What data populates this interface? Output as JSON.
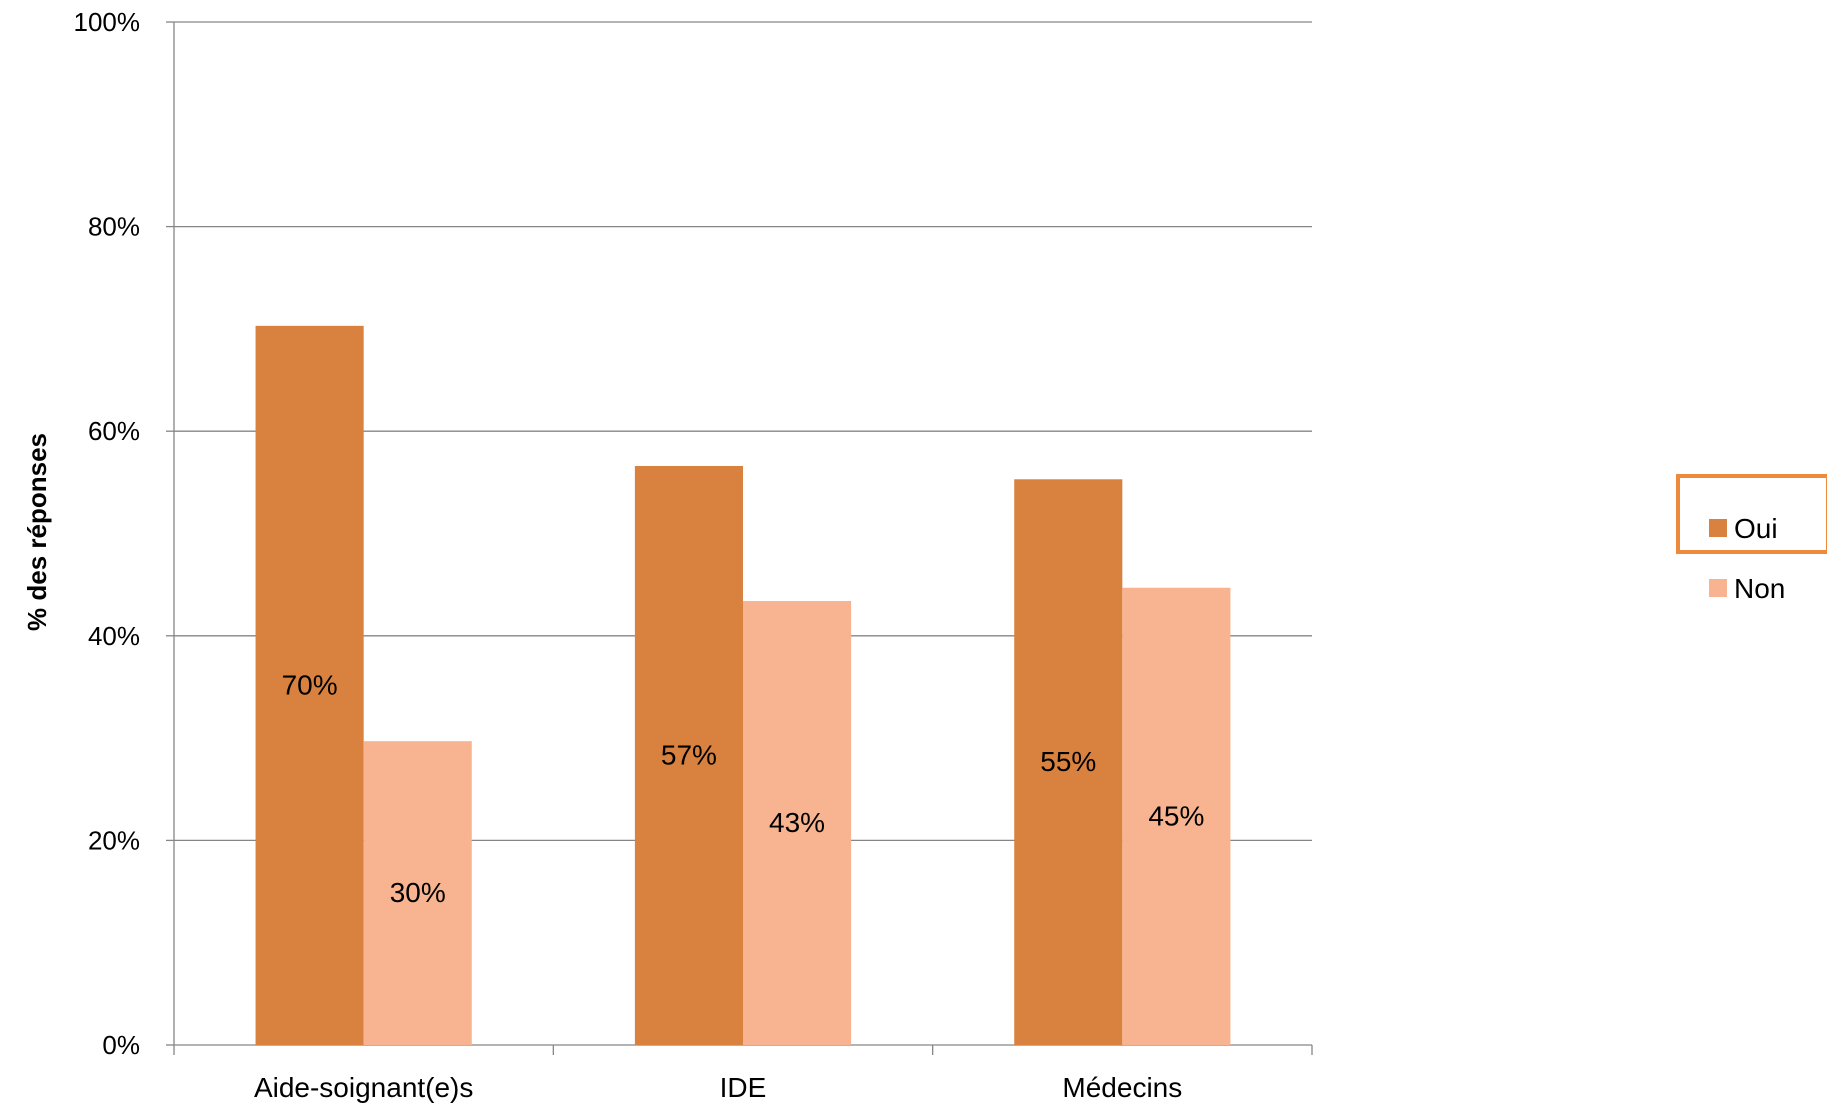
{
  "chart_data": {
    "type": "bar",
    "title": "",
    "xlabel": "",
    "ylabel": "% des réponses",
    "ylim": [
      0,
      100
    ],
    "yticks": [
      "0%",
      "20%",
      "40%",
      "60%",
      "80%",
      "100%"
    ],
    "ytick_values": [
      0,
      20,
      40,
      60,
      80,
      100
    ],
    "grid": true,
    "legend_position": "right",
    "categories": [
      "Aide-soignant(e)s",
      "IDE",
      "Médecins"
    ],
    "series": [
      {
        "name": "Oui",
        "color": "#d9823f",
        "values": [
          70.3,
          56.6,
          55.3
        ],
        "labels": [
          "70%",
          "57%",
          "55%"
        ]
      },
      {
        "name": "Non",
        "color": "#f8b490",
        "values": [
          29.7,
          43.4,
          44.7
        ],
        "labels": [
          "30%",
          "43%",
          "45%"
        ]
      }
    ],
    "legend_highlight_color": "#ed8a3c"
  }
}
